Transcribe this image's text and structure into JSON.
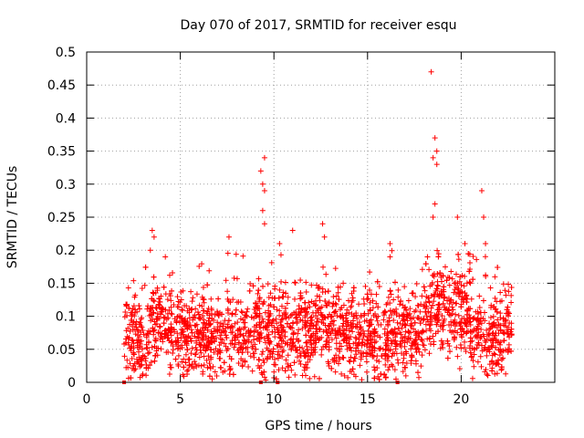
{
  "chart_data": {
    "type": "scatter",
    "title": "Day 070 of 2017, SRMTID for receiver esqu",
    "xlabel": "GPS time / hours",
    "ylabel": "SRMTID / TECUs",
    "xlim": [
      0,
      25
    ],
    "ylim": [
      0,
      0.5
    ],
    "xticks": [
      0,
      5,
      10,
      15,
      20
    ],
    "yticks": [
      0,
      0.05,
      0.1,
      0.15,
      0.2,
      0.25,
      0.3,
      0.35,
      0.4,
      0.45,
      0.5
    ],
    "ytick_labels": [
      "0",
      "0.05",
      "0.1",
      "0.15",
      "0.2",
      "0.25",
      "0.3",
      "0.35",
      "0.4",
      "0.45",
      "0.5"
    ],
    "grid": true,
    "marker": "plus",
    "color": "#ff0000",
    "data_start_hours": 2.0,
    "data_end_hours": 22.7,
    "data_range_typical": [
      0.0,
      0.15
    ],
    "notable_points": [
      {
        "x": 18.4,
        "y": 0.47
      },
      {
        "x": 18.6,
        "y": 0.37
      },
      {
        "x": 18.7,
        "y": 0.35
      },
      {
        "x": 18.5,
        "y": 0.34
      },
      {
        "x": 9.5,
        "y": 0.34
      },
      {
        "x": 18.7,
        "y": 0.33
      },
      {
        "x": 9.3,
        "y": 0.32
      },
      {
        "x": 9.4,
        "y": 0.3
      },
      {
        "x": 9.5,
        "y": 0.29
      },
      {
        "x": 21.1,
        "y": 0.29
      },
      {
        "x": 18.6,
        "y": 0.27
      },
      {
        "x": 9.4,
        "y": 0.26
      },
      {
        "x": 21.2,
        "y": 0.25
      },
      {
        "x": 19.8,
        "y": 0.25
      },
      {
        "x": 18.5,
        "y": 0.25
      },
      {
        "x": 9.5,
        "y": 0.24
      },
      {
        "x": 12.6,
        "y": 0.24
      },
      {
        "x": 11.0,
        "y": 0.23
      },
      {
        "x": 3.5,
        "y": 0.23
      },
      {
        "x": 3.6,
        "y": 0.22
      },
      {
        "x": 7.6,
        "y": 0.22
      },
      {
        "x": 12.7,
        "y": 0.22
      },
      {
        "x": 16.2,
        "y": 0.21
      },
      {
        "x": 10.3,
        "y": 0.21
      },
      {
        "x": 20.2,
        "y": 0.21
      },
      {
        "x": 21.3,
        "y": 0.21
      },
      {
        "x": 3.4,
        "y": 0.2
      },
      {
        "x": 4.2,
        "y": 0.19
      },
      {
        "x": 16.2,
        "y": 0.19
      },
      {
        "x": 18.2,
        "y": 0.19
      }
    ]
  }
}
